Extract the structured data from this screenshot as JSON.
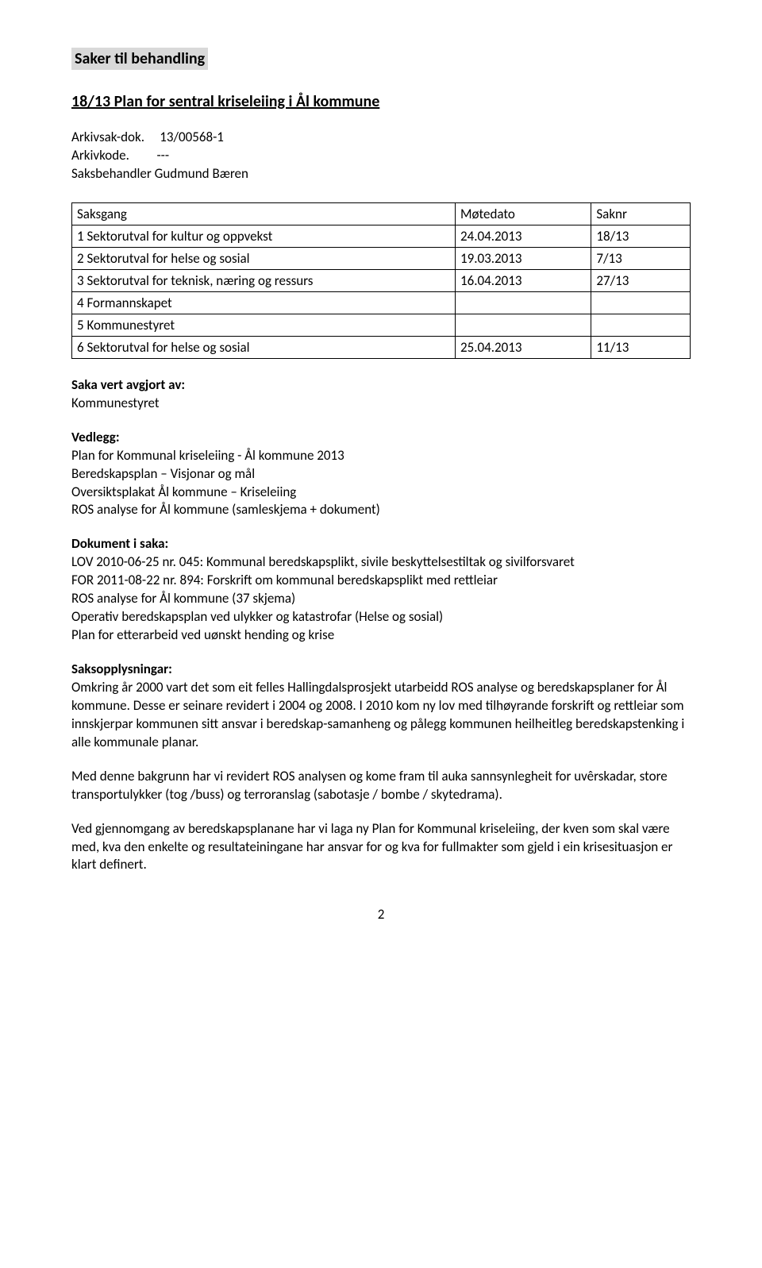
{
  "highlight_title": "Saker til behandling",
  "heading": "18/13 Plan for sentral kriseleiing i Ål kommune",
  "meta": {
    "arkivsak_label": "Arkivsak-dok.",
    "arkivsak_value": "13/00568-1",
    "arkivkode_label": "Arkivkode.",
    "arkivkode_value": "---",
    "saksbehandler_label": "Saksbehandler",
    "saksbehandler_value": "Gudmund Bæren"
  },
  "table": {
    "headers": [
      "Saksgang",
      "Møtedato",
      "Saknr"
    ],
    "rows": [
      [
        "1 Sektorutval for kultur og oppvekst",
        "24.04.2013",
        "18/13"
      ],
      [
        "2 Sektorutval for helse og sosial",
        "19.03.2013",
        "7/13"
      ],
      [
        "3 Sektorutval for teknisk, næring og ressurs",
        "16.04.2013",
        "27/13"
      ],
      [
        "4 Formannskapet",
        "",
        ""
      ],
      [
        "5 Kommunestyret",
        "",
        ""
      ],
      [
        "6 Sektorutval for helse og sosial",
        "25.04.2013",
        "11/13"
      ]
    ]
  },
  "saka_vert": {
    "label": "Saka vert avgjort av:",
    "value": "Kommunestyret"
  },
  "vedlegg": {
    "label": "Vedlegg:",
    "lines": [
      "Plan for Kommunal kriseleiing - Ål kommune 2013",
      "Beredskapsplan – Visjonar og mål",
      "Oversiktsplakat Ål kommune – Kriseleiing",
      "ROS analyse for Ål kommune (samleskjema + dokument)"
    ]
  },
  "dokument": {
    "label": "Dokument i saka:",
    "lines": [
      "LOV 2010-06-25 nr. 045: Kommunal beredskapsplikt, sivile beskyttelsestiltak og sivilforsvaret",
      "FOR 2011-08-22 nr. 894: Forskrift om kommunal beredskapsplikt med rettleiar",
      "ROS analyse for Ål kommune (37 skjema)",
      "Operativ beredskapsplan ved ulykker og katastrofar (Helse og sosial)",
      "Plan for etterarbeid ved uønskt hending og krise"
    ]
  },
  "saksopp": {
    "label": "Saksopplysningar:",
    "para1": "Omkring år 2000 vart det som eit felles Hallingdalsprosjekt utarbeidd ROS analyse og beredskapsplaner for Ål kommune. Desse er seinare revidert i 2004 og 2008. I 2010 kom ny lov med tilhøyrande forskrift og rettleiar som innskjerpar kommunen sitt ansvar i beredskap-samanheng og pålegg kommunen heilheitleg beredskapstenking i alle kommunale planar.",
    "para2": "Med denne bakgrunn har vi revidert ROS analysen og kome fram til auka sannsynlegheit for uvêrskadar, store transportulykker (tog /buss) og terroranslag (sabotasje / bombe / skytedrama).",
    "para3": "Ved gjennomgang av beredskapsplanane har vi laga ny Plan for Kommunal kriseleiing, der kven som skal være med, kva den enkelte og resultateiningane har ansvar for og kva for fullmakter som gjeld i ein krisesituasjon er klart definert."
  },
  "page_number": "2"
}
